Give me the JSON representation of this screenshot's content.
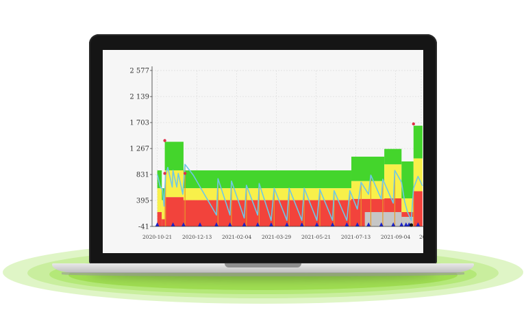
{
  "chart_data": {
    "type": "area",
    "y_ticks": [
      "2 577",
      "2 139",
      "1 703",
      "1 267",
      "831",
      "395",
      "-41"
    ],
    "ylim": [
      -41,
      2577
    ],
    "x_ticks": [
      "2020-10-21",
      "2020-12-13",
      "2021-02-04",
      "2021-03-29",
      "2021-05-21",
      "2021-07-13",
      "2021-09-04",
      "20"
    ],
    "grid": true,
    "colors": {
      "red_zone": "#f2433c",
      "yellow_zone": "#f8f04a",
      "green_zone": "#44d52c",
      "gray_zone": "#c6c6c6",
      "level_line": "#6ec8e6",
      "marker_triangle": "#1a22c8",
      "marker_dot": "#e0304a",
      "bar_line": "#e89a2a"
    },
    "zone_segments": [
      {
        "x_start": "2020-10-21",
        "x_end": "2020-10-27",
        "red_top": 200,
        "yellow_top": 600,
        "green_top": 900
      },
      {
        "x_start": "2020-10-27",
        "x_end": "2020-10-31",
        "red_top": 80,
        "yellow_top": 400,
        "green_top": 600
      },
      {
        "x_start": "2020-10-31",
        "x_end": "2020-11-25",
        "red_top": 450,
        "yellow_top": 900,
        "green_top": 1380
      },
      {
        "x_start": "2020-11-25",
        "x_end": "2021-07-07",
        "red_top": 400,
        "yellow_top": 600,
        "green_top": 900
      },
      {
        "x_start": "2021-07-07",
        "x_end": "2021-08-20",
        "red_top": 420,
        "yellow_top": 720,
        "green_top": 1130
      },
      {
        "x_start": "2021-08-20",
        "x_end": "2021-09-12",
        "red_top": 430,
        "yellow_top": 1000,
        "green_top": 1260
      },
      {
        "x_start": "2021-09-12",
        "x_end": "2021-09-28",
        "red_top": 200,
        "yellow_top": 430,
        "green_top": 1050
      },
      {
        "x_start": "2021-09-28",
        "x_end": "2021-10-10",
        "red_top": 550,
        "yellow_top": 1100,
        "green_top": 1650
      }
    ],
    "gray_overlay": [
      {
        "x_start": "2021-07-25",
        "x_end": "2021-09-12",
        "gray_top": 200
      },
      {
        "x_start": "2021-09-12",
        "x_end": "2021-09-28",
        "gray_top": 120
      }
    ],
    "level_series": [
      {
        "x": "2020-10-21",
        "y": 830
      },
      {
        "x": "2020-10-25",
        "y": 620
      },
      {
        "x": "2020-10-28",
        "y": 580
      },
      {
        "x": "2020-10-30",
        "y": 300
      },
      {
        "x": "2020-11-01",
        "y": 820
      },
      {
        "x": "2020-11-04",
        "y": 950
      },
      {
        "x": "2020-11-10",
        "y": 620
      },
      {
        "x": "2020-11-11",
        "y": 900
      },
      {
        "x": "2020-11-16",
        "y": 620
      },
      {
        "x": "2020-11-18",
        "y": 850
      },
      {
        "x": "2020-11-24",
        "y": 500
      },
      {
        "x": "2020-11-27",
        "y": 1000
      },
      {
        "x": "2020-12-08",
        "y": 820
      },
      {
        "x": "2020-12-20",
        "y": 560
      },
      {
        "x": "2021-01-08",
        "y": 150
      },
      {
        "x": "2021-01-10",
        "y": 760
      },
      {
        "x": "2021-01-26",
        "y": 150
      },
      {
        "x": "2021-01-28",
        "y": 720
      },
      {
        "x": "2021-02-14",
        "y": 100
      },
      {
        "x": "2021-02-17",
        "y": 650
      },
      {
        "x": "2021-03-04",
        "y": 150
      },
      {
        "x": "2021-03-06",
        "y": 680
      },
      {
        "x": "2021-03-22",
        "y": 60
      },
      {
        "x": "2021-03-26",
        "y": 600
      },
      {
        "x": "2021-04-12",
        "y": 60
      },
      {
        "x": "2021-04-15",
        "y": 600
      },
      {
        "x": "2021-05-02",
        "y": 60
      },
      {
        "x": "2021-05-05",
        "y": 600
      },
      {
        "x": "2021-05-22",
        "y": 60
      },
      {
        "x": "2021-05-26",
        "y": 580
      },
      {
        "x": "2021-06-12",
        "y": 60
      },
      {
        "x": "2021-06-14",
        "y": 560
      },
      {
        "x": "2021-07-01",
        "y": 60
      },
      {
        "x": "2021-07-05",
        "y": 560
      },
      {
        "x": "2021-07-15",
        "y": 250
      },
      {
        "x": "2021-07-20",
        "y": 700
      },
      {
        "x": "2021-07-30",
        "y": 500
      },
      {
        "x": "2021-08-02",
        "y": 820
      },
      {
        "x": "2021-08-16",
        "y": 420
      },
      {
        "x": "2021-08-18",
        "y": 750
      },
      {
        "x": "2021-09-01",
        "y": 350
      },
      {
        "x": "2021-09-03",
        "y": 900
      },
      {
        "x": "2021-09-12",
        "y": 700
      },
      {
        "x": "2021-09-16",
        "y": 380
      },
      {
        "x": "2021-09-20",
        "y": 200
      },
      {
        "x": "2021-09-25",
        "y": 60
      },
      {
        "x": "2021-09-28",
        "y": 600
      },
      {
        "x": "2021-10-04",
        "y": 800
      },
      {
        "x": "2021-10-10",
        "y": 640
      }
    ],
    "triangle_markers": [
      "2020-10-21",
      "2020-11-11",
      "2020-11-25",
      "2020-12-17",
      "2021-01-08",
      "2021-01-26",
      "2021-02-14",
      "2021-03-04",
      "2021-03-22",
      "2021-04-12",
      "2021-05-02",
      "2021-05-22",
      "2021-06-12",
      "2021-07-01",
      "2021-07-15",
      "2021-07-30",
      "2021-08-16",
      "2021-09-01",
      "2021-09-12",
      "2021-09-18",
      "2021-09-22",
      "2021-10-04"
    ],
    "dot_markers": [
      {
        "x": "2020-10-31",
        "y": 1400
      },
      {
        "x": "2020-10-31",
        "y": 850
      },
      {
        "x": "2020-11-27",
        "y": 850
      },
      {
        "x": "2021-09-28",
        "y": 1680
      }
    ],
    "black_marker": {
      "x": "2021-09-25",
      "y": -41
    }
  }
}
